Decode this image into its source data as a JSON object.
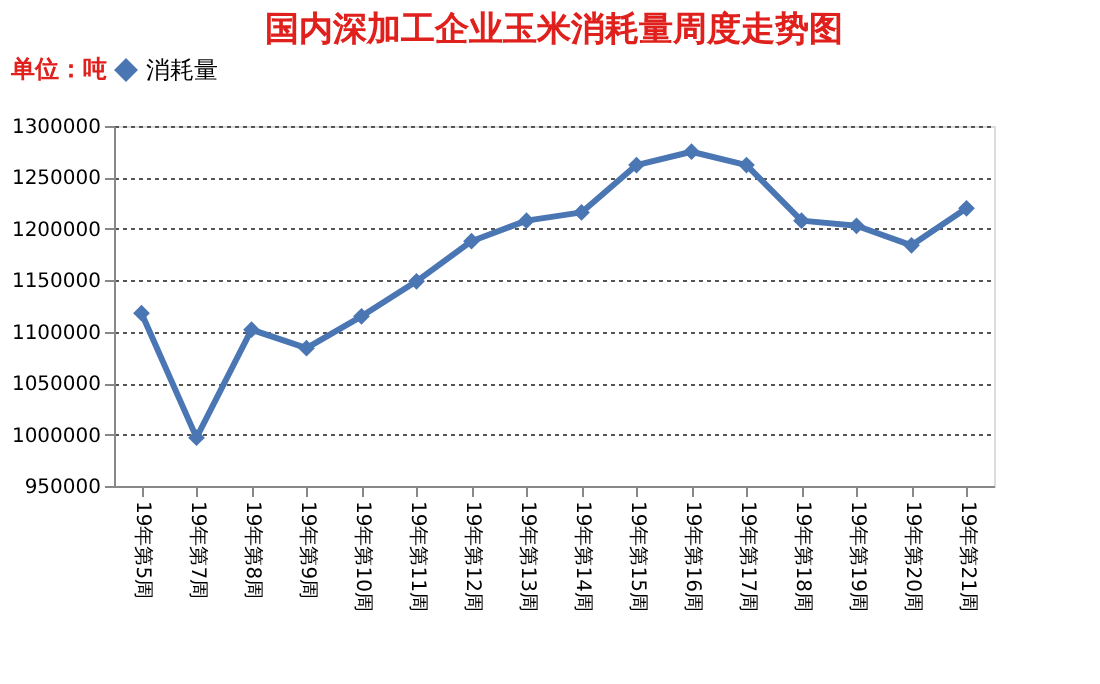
{
  "chart_data": {
    "type": "line",
    "title": "国内深加工企业玉米消耗量周度走势图",
    "ylabel": "单位：吨",
    "categories": [
      "19年第5周",
      "19年第7周",
      "19年第8周",
      "19年第9周",
      "19年第10周",
      "19年第11周",
      "19年第12周",
      "19年第13周",
      "19年第14周",
      "19年第15周",
      "19年第16周",
      "19年第17周",
      "19年第18周",
      "19年第19周",
      "19年第20周",
      "19年第21周"
    ],
    "series": [
      {
        "name": "消耗量",
        "color": "#4a76b3",
        "values": [
          1118000,
          997000,
          1102000,
          1084000,
          1115000,
          1149000,
          1188000,
          1208000,
          1216000,
          1262000,
          1275000,
          1262000,
          1208000,
          1203000,
          1184000,
          1220000
        ]
      }
    ],
    "ylim": [
      950000,
      1300000
    ],
    "yticks": [
      950000,
      1000000,
      1050000,
      1100000,
      1150000,
      1200000,
      1250000,
      1300000
    ],
    "grid": "y",
    "legend": "top",
    "marker": "diamond",
    "line_style": "solid"
  }
}
